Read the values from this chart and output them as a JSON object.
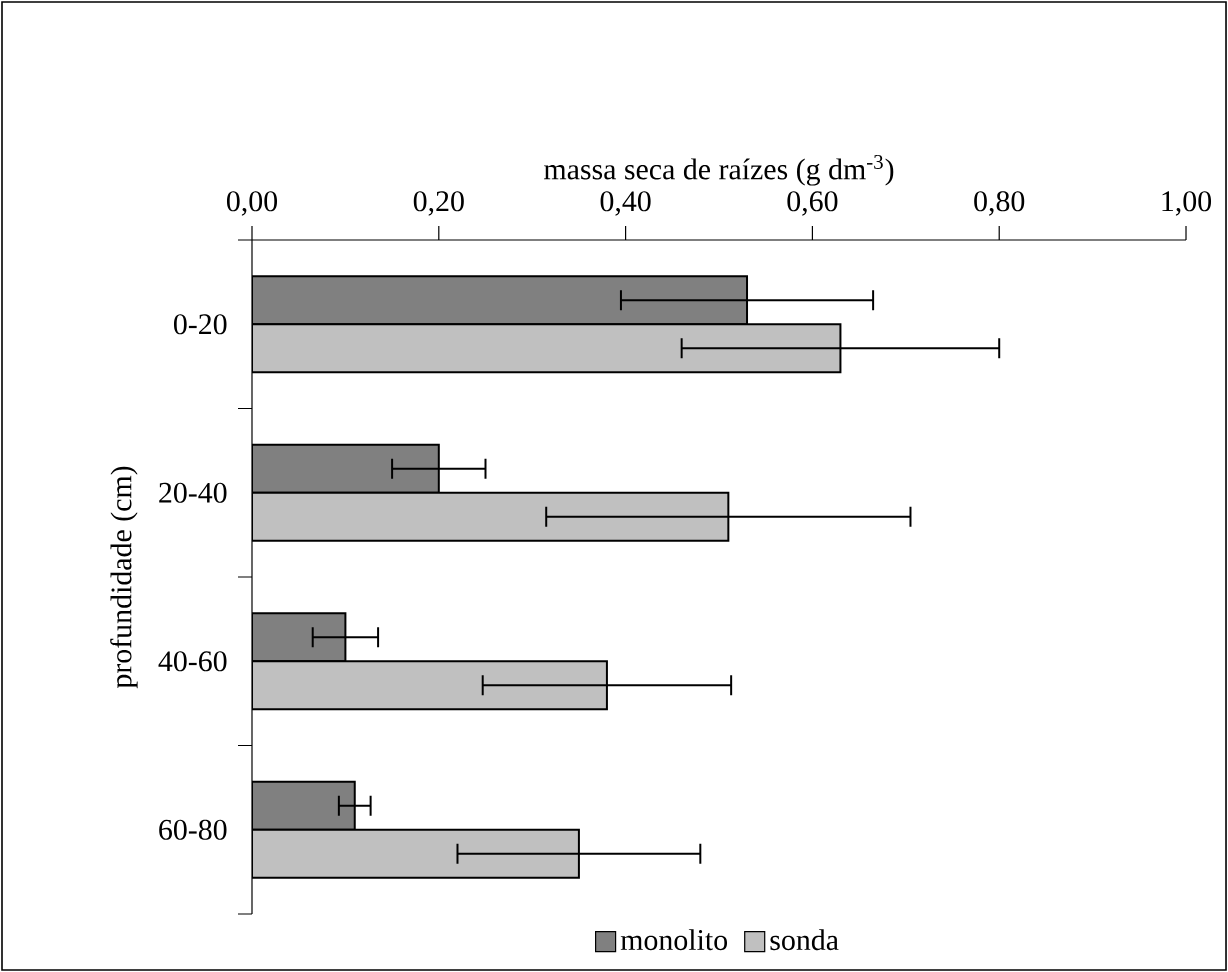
{
  "chart_data": {
    "type": "bar",
    "orientation": "horizontal",
    "xlabel": "massa seca de raízes (g dm$^{-3}$)",
    "ylabel": "profundidade (cm)",
    "categories": [
      "0-20",
      "20-40",
      "40-60",
      "60-80"
    ],
    "series": [
      {
        "name": "monolito",
        "color": "#808080",
        "values": [
          0.53,
          0.2,
          0.1,
          0.11
        ],
        "errors": [
          0.135,
          0.05,
          0.035,
          0.017
        ]
      },
      {
        "name": "sonda",
        "color": "#c0c0c0",
        "values": [
          0.63,
          0.51,
          0.38,
          0.35
        ],
        "errors": [
          0.17,
          0.195,
          0.133,
          0.13
        ]
      }
    ],
    "xlim": [
      0,
      1
    ],
    "xticks": [
      {
        "value": 0,
        "label": "0,00"
      },
      {
        "value": 0.2,
        "label": "0,20"
      },
      {
        "value": 0.4,
        "label": "0,40"
      },
      {
        "value": 0.6,
        "label": "0,60"
      },
      {
        "value": 0.8,
        "label": "0,80"
      },
      {
        "value": 1,
        "label": "1,00"
      }
    ],
    "grid": false,
    "legend": "bottom"
  }
}
